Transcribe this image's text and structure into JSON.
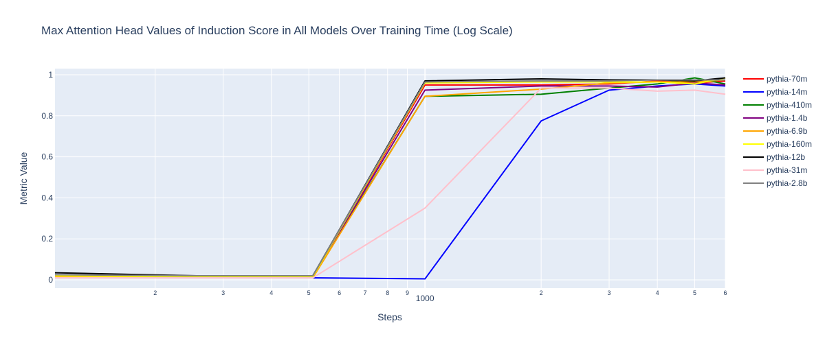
{
  "chart_data": {
    "type": "line",
    "title": "Max Attention Head Values of Induction Score in All Models Over Training Time (Log Scale)",
    "xlabel": "Steps",
    "ylabel": "Metric Value",
    "x_scale": "log",
    "xlim": [
      110,
      6000
    ],
    "ylim": [
      -0.04,
      1.03
    ],
    "grid": true,
    "legend_position": "right",
    "background_color": "#e5ecf6",
    "y_ticks": [
      0,
      0.2,
      0.4,
      0.6,
      0.8,
      1
    ],
    "y_tick_labels": [
      "0",
      "0.2",
      "0.4",
      "0.6",
      "0.8",
      "1"
    ],
    "x_major_ticks": [
      1000
    ],
    "x_major_tick_labels": [
      "1000"
    ],
    "x_minor_ticks": [
      200,
      300,
      400,
      500,
      600,
      700,
      800,
      900,
      2000,
      3000,
      4000,
      5000,
      6000
    ],
    "x_minor_tick_labels": [
      "2",
      "3",
      "4",
      "5",
      "6",
      "7",
      "8",
      "9",
      "2",
      "3",
      "4",
      "5",
      "6"
    ],
    "x": [
      110,
      256,
      512,
      1000,
      2000,
      3000,
      4000,
      5000,
      6000
    ],
    "series": [
      {
        "name": "pythia-70m",
        "color": "#ff0000",
        "values": [
          0.02,
          0.015,
          0.015,
          0.95,
          0.95,
          0.955,
          0.97,
          0.96,
          0.97
        ]
      },
      {
        "name": "pythia-14m",
        "color": "#0000ff",
        "values": [
          0.01,
          0.01,
          0.01,
          0.005,
          0.775,
          0.925,
          0.945,
          0.955,
          0.945
        ]
      },
      {
        "name": "pythia-410m",
        "color": "#008000",
        "values": [
          0.02,
          0.015,
          0.015,
          0.895,
          0.905,
          0.935,
          0.955,
          0.985,
          0.955
        ]
      },
      {
        "name": "pythia-1.4b",
        "color": "#800080",
        "values": [
          0.02,
          0.015,
          0.015,
          0.925,
          0.945,
          0.945,
          0.94,
          0.96,
          0.95
        ]
      },
      {
        "name": "pythia-6.9b",
        "color": "#ffa500",
        "values": [
          0.015,
          0.01,
          0.01,
          0.895,
          0.93,
          0.96,
          0.965,
          0.965,
          0.975
        ]
      },
      {
        "name": "pythia-160m",
        "color": "#ffff00",
        "values": [
          0.02,
          0.015,
          0.015,
          0.96,
          0.965,
          0.965,
          0.965,
          0.955,
          0.985
        ]
      },
      {
        "name": "pythia-12b",
        "color": "#000000",
        "values": [
          0.035,
          0.02,
          0.02,
          0.97,
          0.98,
          0.975,
          0.975,
          0.97,
          0.985
        ]
      },
      {
        "name": "pythia-31m",
        "color": "#ffc0cb",
        "values": [
          0.01,
          0.01,
          0.01,
          0.35,
          0.935,
          0.935,
          0.92,
          0.925,
          0.905
        ]
      },
      {
        "name": "pythia-2.8b",
        "color": "#808080",
        "values": [
          0.025,
          0.02,
          0.02,
          0.965,
          0.97,
          0.97,
          0.975,
          0.975,
          0.975
        ]
      }
    ]
  }
}
